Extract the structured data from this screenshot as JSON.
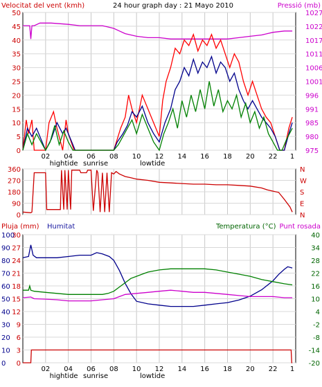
{
  "chart_data": [
    {
      "type": "line",
      "title": "24 hour graph day : 21 Mayo 2010",
      "ylabel_left": "Velocitat del vent (kmh)",
      "ylabel_right": "Pressió (mb)",
      "ylim": [
        0,
        50
      ],
      "y_ticks": [
        0,
        5,
        10,
        15,
        20,
        25,
        30,
        35,
        40,
        45,
        50
      ],
      "y2lim": [
        975,
        1027
      ],
      "y2_ticks": [
        975,
        980,
        985,
        991,
        996,
        1001,
        1006,
        1011,
        1017,
        1022,
        1027
      ],
      "xlim": [
        0,
        24
      ],
      "x_ticks": [
        "02",
        "04",
        "06",
        "08",
        "10",
        "12",
        "14",
        "16",
        "18",
        "20",
        "22",
        "1"
      ],
      "annotations": [
        {
          "label": "hightide",
          "x": 3.6
        },
        {
          "label": "sunrise",
          "x": 6.4
        },
        {
          "label": "lowtide",
          "x": 11.4
        }
      ],
      "grid": true,
      "series": [
        {
          "color": "#cc00cc",
          "axis": "right",
          "x": [
            0,
            0.6,
            0.7,
            0.8,
            1.0,
            1.5,
            2.5,
            4,
            5,
            6,
            7,
            7.5,
            8,
            8.5,
            9,
            9.5,
            10,
            11,
            12,
            13,
            14,
            15,
            16,
            17,
            18,
            19,
            20,
            21,
            22,
            23,
            23.7
          ],
          "values": [
            1022,
            1022,
            1017,
            1022,
            1022,
            1023,
            1023,
            1022.5,
            1022,
            1022,
            1022,
            1021.5,
            1021,
            1020,
            1019,
            1018.5,
            1018,
            1017.5,
            1017.5,
            1017,
            1017,
            1017,
            1017,
            1017,
            1017,
            1017.5,
            1018,
            1018.5,
            1019.5,
            1020,
            1020
          ]
        },
        {
          "color": "#ff0000",
          "axis": "left",
          "x": [
            0,
            0.3,
            0.5,
            0.8,
            1.0,
            1.5,
            2.0,
            2.3,
            2.7,
            3.0,
            3.5,
            3.8,
            4.0,
            4.5,
            7.5,
            8.0,
            8.3,
            8.6,
            9.0,
            9.3,
            9.6,
            10,
            10.5,
            11,
            11.5,
            12,
            12.3,
            12.6,
            13,
            13.4,
            13.8,
            14.2,
            14.6,
            15.0,
            15.4,
            15.8,
            16.2,
            16.6,
            17.0,
            17.4,
            17.8,
            18.2,
            18.6,
            19.0,
            19.4,
            19.8,
            20.2,
            20.6,
            21.0,
            21.4,
            21.8,
            22.2,
            22.6,
            23.0,
            23.4,
            23.7
          ],
          "values": [
            0,
            11,
            6,
            11,
            0,
            0,
            0,
            10,
            14,
            8,
            0,
            11,
            6,
            0,
            0,
            0,
            4,
            8,
            12,
            20,
            15,
            10,
            20,
            15,
            10,
            5,
            18,
            25,
            30,
            37,
            35,
            40,
            38,
            42,
            36,
            40,
            38,
            42,
            37,
            40,
            35,
            30,
            35,
            32,
            25,
            20,
            25,
            20,
            15,
            12,
            10,
            5,
            0,
            0,
            8,
            12
          ]
        },
        {
          "color": "#00008b",
          "axis": "left",
          "x": [
            0,
            0.4,
            0.8,
            1.2,
            2.0,
            2.5,
            3.0,
            3.5,
            3.8,
            4.2,
            4.6,
            8.0,
            8.3,
            8.8,
            9.2,
            9.6,
            10,
            10.5,
            11,
            11.5,
            12,
            12.5,
            13,
            13.4,
            13.8,
            14.2,
            14.6,
            15.0,
            15.4,
            15.8,
            16.2,
            16.6,
            17.0,
            17.4,
            17.8,
            18.2,
            18.6,
            19.0,
            19.4,
            19.8,
            20.2,
            20.6,
            21.0,
            21.4,
            21.8,
            22.2,
            22.6,
            23.0,
            23.4,
            23.7
          ],
          "values": [
            0,
            8,
            5,
            8,
            0,
            4,
            10,
            6,
            8,
            4,
            0,
            0,
            3,
            6,
            9,
            14,
            12,
            16,
            10,
            6,
            3,
            10,
            15,
            22,
            25,
            30,
            27,
            33,
            28,
            32,
            30,
            34,
            28,
            32,
            30,
            25,
            28,
            22,
            18,
            15,
            18,
            15,
            12,
            10,
            8,
            5,
            0,
            0,
            6,
            10
          ]
        },
        {
          "color": "#008000",
          "axis": "left",
          "x": [
            0,
            0.4,
            0.8,
            1.2,
            2.0,
            2.4,
            2.8,
            3.2,
            3.6,
            4.0,
            4.4,
            8.0,
            8.4,
            8.8,
            9.2,
            9.6,
            10,
            10.5,
            11,
            11.5,
            12,
            12.4,
            12.8,
            13.2,
            13.6,
            14.0,
            14.4,
            14.8,
            15.2,
            15.6,
            16.0,
            16.4,
            16.8,
            17.2,
            17.6,
            18.0,
            18.4,
            18.8,
            19.2,
            19.6,
            20.0,
            20.4,
            20.8,
            21.2,
            21.6,
            22.0,
            22.4,
            22.8,
            23.2,
            23.7
          ],
          "values": [
            0,
            6,
            2,
            6,
            0,
            3,
            9,
            2,
            7,
            3,
            0,
            0,
            2,
            5,
            8,
            11,
            6,
            13,
            8,
            3,
            0,
            6,
            10,
            15,
            8,
            18,
            12,
            20,
            14,
            22,
            15,
            25,
            16,
            22,
            14,
            18,
            15,
            20,
            12,
            17,
            10,
            14,
            8,
            12,
            6,
            3,
            0,
            0,
            4,
            8
          ]
        }
      ]
    },
    {
      "type": "line",
      "ylim": [
        0,
        360
      ],
      "y_ticks": [
        0,
        90,
        180,
        270,
        360
      ],
      "y_right_labels": [
        "N",
        "W",
        "S",
        "E",
        "N"
      ],
      "xlim": [
        0,
        24
      ],
      "grid": true,
      "series": [
        {
          "color": "#cc0000",
          "x": [
            0,
            0.7,
            0.8,
            1.0,
            1.5,
            2.0,
            2.1,
            3.0,
            3.3,
            3.4,
            3.6,
            3.7,
            3.9,
            4.0,
            4.2,
            4.3,
            5.0,
            5.1,
            5.6,
            5.7,
            6.0,
            6.2,
            6.5,
            6.6,
            6.8,
            7.0,
            7.2,
            7.4,
            7.6,
            7.8,
            8.0,
            8.2,
            8.5,
            9,
            9.5,
            10,
            11,
            12,
            13,
            14,
            15,
            16,
            17,
            18,
            19,
            20,
            21,
            21.5,
            22,
            22.5,
            23,
            23.5,
            23.7
          ],
          "values": [
            20,
            15,
            20,
            330,
            330,
            330,
            40,
            40,
            40,
            350,
            40,
            350,
            40,
            350,
            40,
            350,
            350,
            330,
            330,
            350,
            350,
            30,
            350,
            330,
            20,
            330,
            20,
            330,
            20,
            330,
            320,
            340,
            320,
            300,
            290,
            280,
            270,
            255,
            250,
            245,
            240,
            240,
            235,
            235,
            230,
            225,
            210,
            195,
            185,
            175,
            120,
            60,
            20
          ]
        }
      ]
    },
    {
      "type": "line",
      "ylabel_left": "Pluja (mm)",
      "ylabel_left2": "Humitat",
      "ylabel_right": "Temperatura (°C)",
      "ylabel_right2": "Punt rosada",
      "ylim": [
        0,
        30
      ],
      "y_ticks": [
        0,
        3,
        6,
        9,
        12,
        15,
        18,
        21,
        24,
        27,
        30
      ],
      "y_ticks_humidity": [
        0,
        10,
        20,
        30,
        40,
        50,
        60,
        70,
        80,
        90,
        100
      ],
      "y2lim": [
        -20,
        40
      ],
      "y2_ticks": [
        -20,
        -14,
        -8,
        -2,
        4,
        10,
        16,
        22,
        28,
        34,
        40
      ],
      "xlim": [
        0,
        24
      ],
      "x_ticks": [
        "02",
        "04",
        "06",
        "08",
        "10",
        "12",
        "14",
        "16",
        "18",
        "20",
        "22",
        "1"
      ],
      "annotations": [
        {
          "label": "hightide",
          "x": 3.6
        },
        {
          "label": "sunrise",
          "x": 6.4
        },
        {
          "label": "lowtide",
          "x": 11.4
        }
      ],
      "grid": true,
      "series": [
        {
          "color": "#cc0000",
          "axis": "left",
          "x": [
            0,
            0.7,
            0.75,
            23.6,
            23.65,
            23.7
          ],
          "values": [
            0,
            0,
            3,
            3,
            0,
            0
          ]
        },
        {
          "color": "#00008b",
          "axis": "humidity",
          "x": [
            0,
            0.5,
            0.7,
            0.9,
            1.2,
            2,
            3,
            4,
            5,
            6,
            6.5,
            7,
            7.3,
            7.6,
            8,
            8.5,
            9,
            9.5,
            10,
            11,
            12,
            13,
            14,
            15,
            16,
            17,
            18,
            19,
            20,
            21,
            22,
            22.5,
            23,
            23.3,
            23.7
          ],
          "values": [
            82,
            83,
            92,
            84,
            82,
            82,
            82,
            83,
            84,
            84,
            86,
            85,
            84,
            83,
            80,
            72,
            62,
            54,
            48,
            46,
            45,
            44,
            44,
            44,
            45,
            46,
            47,
            49,
            52,
            57,
            64,
            69,
            73,
            75,
            74
          ]
        },
        {
          "color": "#008000",
          "axis": "right",
          "x": [
            0,
            0.5,
            0.6,
            0.7,
            1.0,
            2,
            3,
            4,
            5,
            6,
            7,
            7.5,
            8,
            8.5,
            9,
            9.5,
            10,
            10.5,
            11,
            12,
            13,
            14,
            15,
            16,
            17,
            18,
            19,
            20,
            21,
            22,
            23,
            23.7
          ],
          "values": [
            14.0,
            14.0,
            16.0,
            14.0,
            13.5,
            13.0,
            12.5,
            12.0,
            12.0,
            12.0,
            12.0,
            12.5,
            13.5,
            15.5,
            17.5,
            19.5,
            20.5,
            21.5,
            22.5,
            23.5,
            24.0,
            24.0,
            24.0,
            24.0,
            23.5,
            22.5,
            21.5,
            20.5,
            19.0,
            18.0,
            17.0,
            16.5
          ]
        },
        {
          "color": "#cc00cc",
          "axis": "right",
          "x": [
            0,
            0.7,
            1.0,
            2,
            3,
            4,
            5,
            6,
            7,
            8,
            8.5,
            9,
            10,
            11,
            12,
            13,
            14,
            15,
            16,
            17,
            18,
            19,
            20,
            21,
            22,
            23,
            23.7
          ],
          "values": [
            10.5,
            10.8,
            10.0,
            9.8,
            9.5,
            9.0,
            9.0,
            9.0,
            9.5,
            10.0,
            11.0,
            12.0,
            12.5,
            13.0,
            13.5,
            14.0,
            13.5,
            13.0,
            13.0,
            12.5,
            12.0,
            11.5,
            11.0,
            11.0,
            11.0,
            10.5,
            10.5
          ]
        }
      ]
    }
  ]
}
